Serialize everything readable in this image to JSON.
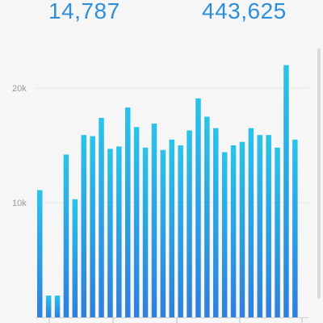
{
  "header": {
    "left_value": "14,787",
    "right_value": "443,625"
  },
  "colors": {
    "accent": "#2e8fd8",
    "bar_top": "#2bc3ea",
    "bar_bottom": "#2f7fdc",
    "grid": "#e6e6e6",
    "tick_label": "#9a9a9a"
  },
  "chart_data": {
    "type": "bar",
    "values": [
      11100,
      1900,
      1900,
      14200,
      10300,
      15900,
      15800,
      17400,
      14700,
      14900,
      18300,
      16600,
      14800,
      16900,
      14600,
      15500,
      15000,
      16300,
      19100,
      17500,
      16500,
      14400,
      15000,
      15300,
      16500,
      15900,
      15900,
      14800,
      22000,
      15500
    ],
    "ylim": [
      0,
      24000
    ],
    "yticks": [
      {
        "value": 10000,
        "label": "10k"
      },
      {
        "value": 20000,
        "label": "20k"
      }
    ],
    "grid": true,
    "xlabel": "",
    "ylabel": ""
  }
}
